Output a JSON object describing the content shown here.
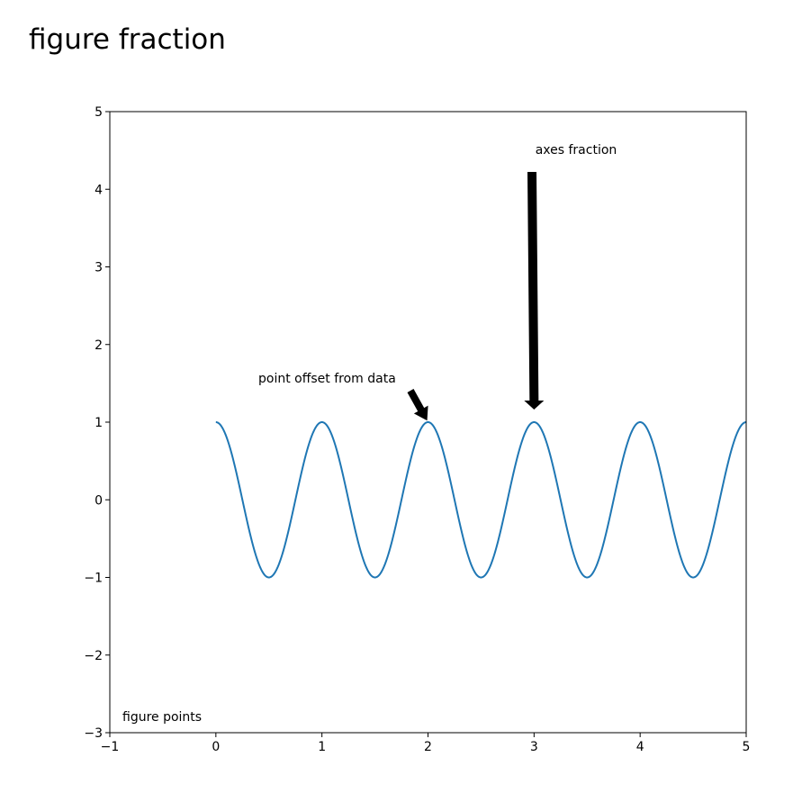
{
  "chart_data": {
    "type": "line",
    "title": "",
    "xlabel": "",
    "ylabel": "",
    "xlim": [
      -1,
      5
    ],
    "ylim": [
      -3,
      5
    ],
    "xticks": [
      -1,
      0,
      1,
      2,
      3,
      4,
      5
    ],
    "xtick_labels": [
      "−1",
      "0",
      "1",
      "2",
      "3",
      "4",
      "5"
    ],
    "yticks": [
      -3,
      -2,
      -1,
      0,
      1,
      2,
      3,
      4,
      5
    ],
    "ytick_labels": [
      "−3",
      "−2",
      "−1",
      "0",
      "1",
      "2",
      "3",
      "4",
      "5"
    ],
    "grid": false,
    "series": [
      {
        "function": "cos(2*pi*x)",
        "x_range": [
          0,
          5
        ],
        "color": "#1f77b4"
      }
    ],
    "annotations": [
      {
        "text": "figure fraction",
        "arrow": false
      },
      {
        "text": "figure points",
        "arrow": false
      },
      {
        "text": "axes fraction",
        "arrow": true,
        "target": [
          3,
          1
        ]
      },
      {
        "text": "point offset from data",
        "arrow": true,
        "target": [
          2,
          1
        ]
      }
    ]
  }
}
